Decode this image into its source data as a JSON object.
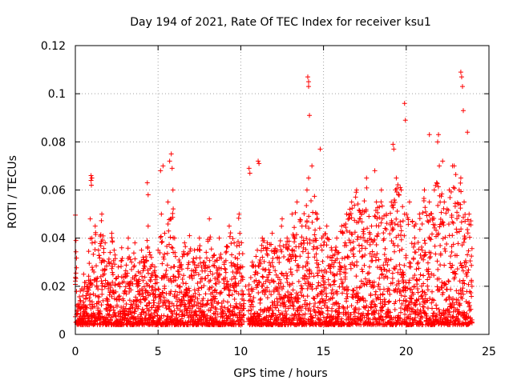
{
  "chart_data": {
    "type": "scatter",
    "title": "Day 194 of 2021, Rate Of TEC Index for receiver ksu1",
    "xlabel": "GPS time / hours",
    "ylabel": "ROTI / TECUs",
    "xlim": [
      0,
      25
    ],
    "ylim": [
      0,
      0.12
    ],
    "xticks": [
      0,
      5,
      10,
      15,
      20,
      25
    ],
    "xtick_labels": [
      "0",
      "5",
      "10",
      "15",
      "20",
      "25"
    ],
    "yticks": [
      0,
      0.02,
      0.04,
      0.06,
      0.08,
      0.1,
      0.12
    ],
    "ytick_labels": [
      "0",
      "0.02",
      "0.04",
      "0.06",
      "0.08",
      "0.1",
      "0.12"
    ],
    "grid": true,
    "marker": "+",
    "color": "#ff0000",
    "series": [
      {
        "x": [
          0.1,
          0.3,
          0.5,
          0.7,
          0.9,
          1.0,
          1.2,
          1.4,
          1.6,
          1.8,
          2.0,
          2.2,
          2.4,
          2.6,
          2.8,
          3.0,
          3.2,
          3.4,
          3.6,
          3.8,
          4.0,
          4.2,
          4.4,
          4.6,
          4.8,
          5.0,
          5.2,
          5.4,
          5.6,
          5.8,
          5.9,
          6.0,
          6.3,
          6.6,
          6.9,
          7.2,
          7.5,
          7.8,
          8.1,
          8.4,
          8.7,
          9.0,
          9.3,
          9.6,
          9.9,
          10.3,
          10.7,
          11.0,
          11.3,
          11.6,
          11.9,
          12.2,
          12.5,
          12.8,
          13.1,
          13.4,
          13.7,
          14.0,
          14.1,
          14.3,
          14.6,
          14.9,
          15.2,
          15.5,
          15.8,
          16.1,
          16.4,
          16.7,
          17.0,
          17.3,
          17.6,
          17.9,
          18.2,
          18.5,
          18.8,
          19.1,
          19.4,
          19.7,
          19.9,
          20.2,
          20.5,
          20.8,
          21.1,
          21.4,
          21.7,
          22.0,
          22.3,
          22.6,
          22.9,
          23.2,
          23.3,
          23.5,
          23.8,
          0.95,
          0.95,
          0.97,
          1.0,
          4.35,
          4.4,
          5.15,
          5.3,
          5.7,
          5.8,
          5.85,
          10.5,
          10.55,
          11.05,
          11.1,
          14.05,
          14.1,
          14.1,
          14.15,
          14.8,
          18.1,
          19.2,
          19.25,
          19.9,
          19.95,
          21.4,
          21.9,
          21.95,
          22.2,
          22.8,
          23.3,
          23.35,
          23.4,
          23.45,
          23.7,
          0.5,
          1.5,
          2.5,
          3.5,
          4.5,
          5.5,
          6.5,
          7.5,
          8.5,
          9.5,
          11.5,
          12.5,
          13.5,
          14.5,
          15.5,
          16.5,
          17.5,
          18.5,
          19.5,
          20.5,
          21.5,
          22.5,
          23.5
        ],
        "y": [
          0.012,
          0.018,
          0.025,
          0.02,
          0.048,
          0.04,
          0.045,
          0.035,
          0.05,
          0.038,
          0.03,
          0.042,
          0.033,
          0.028,
          0.036,
          0.025,
          0.04,
          0.03,
          0.038,
          0.026,
          0.035,
          0.03,
          0.045,
          0.032,
          0.028,
          0.035,
          0.05,
          0.042,
          0.055,
          0.048,
          0.06,
          0.04,
          0.03,
          0.038,
          0.041,
          0.035,
          0.04,
          0.03,
          0.048,
          0.033,
          0.04,
          0.03,
          0.045,
          0.038,
          0.05,
          0.02,
          0.03,
          0.035,
          0.04,
          0.038,
          0.042,
          0.035,
          0.048,
          0.04,
          0.05,
          0.055,
          0.045,
          0.06,
          0.065,
          0.07,
          0.05,
          0.04,
          0.045,
          0.035,
          0.04,
          0.045,
          0.05,
          0.055,
          0.06,
          0.05,
          0.065,
          0.045,
          0.055,
          0.06,
          0.05,
          0.055,
          0.065,
          0.06,
          0.05,
          0.055,
          0.045,
          0.05,
          0.06,
          0.055,
          0.06,
          0.07,
          0.055,
          0.06,
          0.07,
          0.06,
          0.065,
          0.055,
          0.05,
          0.066,
          0.064,
          0.062,
          0.065,
          0.063,
          0.058,
          0.068,
          0.07,
          0.072,
          0.075,
          0.069,
          0.069,
          0.067,
          0.072,
          0.071,
          0.107,
          0.105,
          0.103,
          0.091,
          0.077,
          0.068,
          0.079,
          0.077,
          0.096,
          0.089,
          0.083,
          0.08,
          0.083,
          0.072,
          0.07,
          0.109,
          0.107,
          0.103,
          0.093,
          0.084,
          0.006,
          0.007,
          0.006,
          0.005,
          0.007,
          0.006,
          0.005,
          0.006,
          0.007,
          0.006,
          0.005,
          0.006,
          0.007,
          0.005,
          0.006,
          0.007,
          0.005,
          0.006,
          0.007,
          0.006,
          0.005,
          0.006,
          0.007
        ]
      }
    ]
  }
}
